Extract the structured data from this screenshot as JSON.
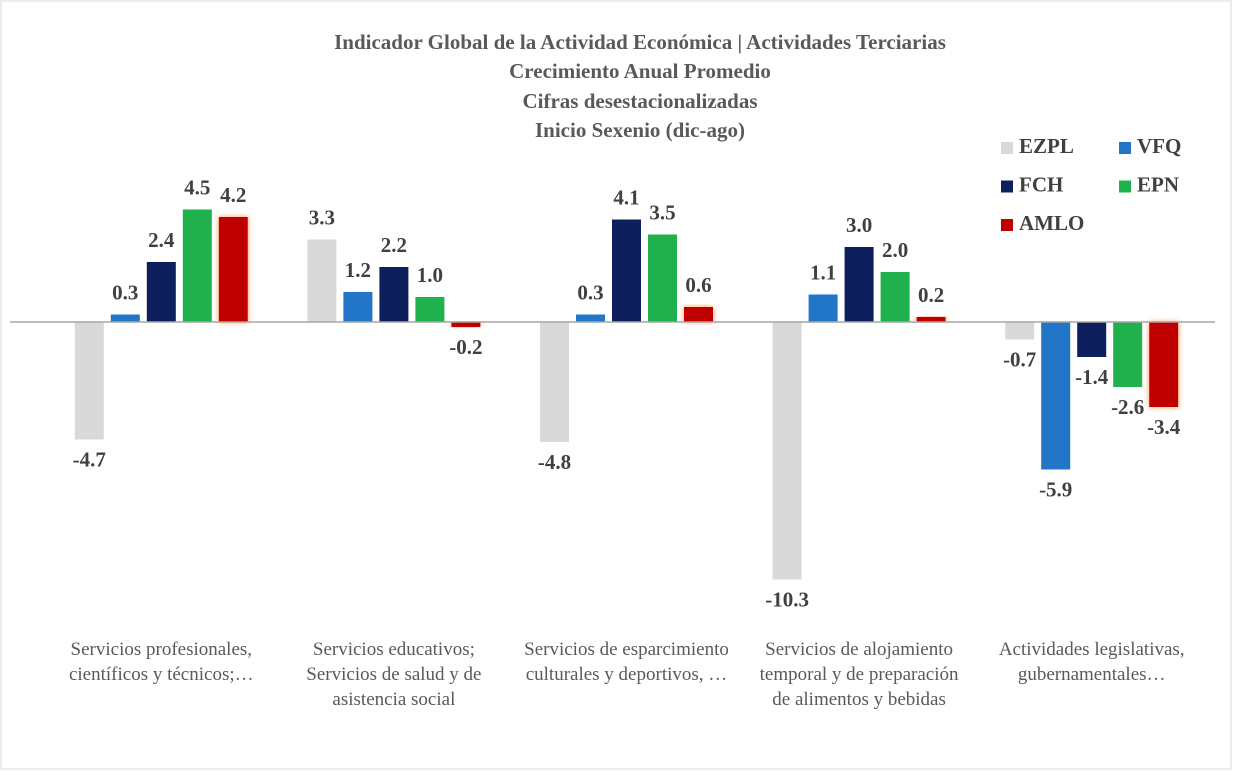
{
  "chart_data": {
    "type": "bar",
    "title": "Indicador Global de la Actividad Económica  | Actividades Terciarias",
    "subtitle": [
      "Crecimiento Anual Promedio",
      "Cifras desestacionalizadas",
      "Inicio Sexenio (dic-ago)"
    ],
    "categories": [
      "Servicios profesionales, científicos y técnicos;…",
      "Servicios educativos; Servicios de salud y de asistencia social",
      "Servicios de esparcimiento culturales y deportivos, …",
      "Servicios de alojamiento temporal y de preparación de alimentos y bebidas",
      "Actividades legislativas, gubernamentales…"
    ],
    "series": [
      {
        "name": "EZPL",
        "color": "#d9d9d9",
        "values": [
          -4.7,
          3.3,
          -4.8,
          -10.3,
          -0.7
        ],
        "value_labels": [
          "-4.7",
          "3.3",
          "-4.8",
          "-10.3",
          "-0.7"
        ]
      },
      {
        "name": "VFQ",
        "color": "#2176c7",
        "values": [
          0.3,
          1.2,
          0.3,
          1.1,
          -5.9
        ],
        "value_labels": [
          "0.3",
          "1.2",
          "0.3",
          "1.1",
          "-5.9"
        ]
      },
      {
        "name": "FCH",
        "color": "#0d1f5c",
        "values": [
          2.4,
          2.2,
          4.1,
          3.0,
          -1.4
        ],
        "value_labels": [
          "2.4",
          "2.2",
          "4.1",
          "3.0",
          "-1.4"
        ]
      },
      {
        "name": "EPN",
        "color": "#21b14c",
        "values": [
          4.5,
          1.0,
          3.5,
          2.0,
          -2.6
        ],
        "value_labels": [
          "4.5",
          "1.0",
          "3.5",
          "2.0",
          "-2.6"
        ]
      },
      {
        "name": "AMLO",
        "color": "#c00000",
        "values": [
          4.2,
          -0.2,
          0.6,
          0.2,
          -3.4
        ],
        "value_labels": [
          "4.2",
          "-0.2",
          "0.6",
          "0.2",
          "-3.4"
        ]
      }
    ],
    "ylim": [
      -11,
      6.5
    ],
    "legend": "top-right"
  }
}
